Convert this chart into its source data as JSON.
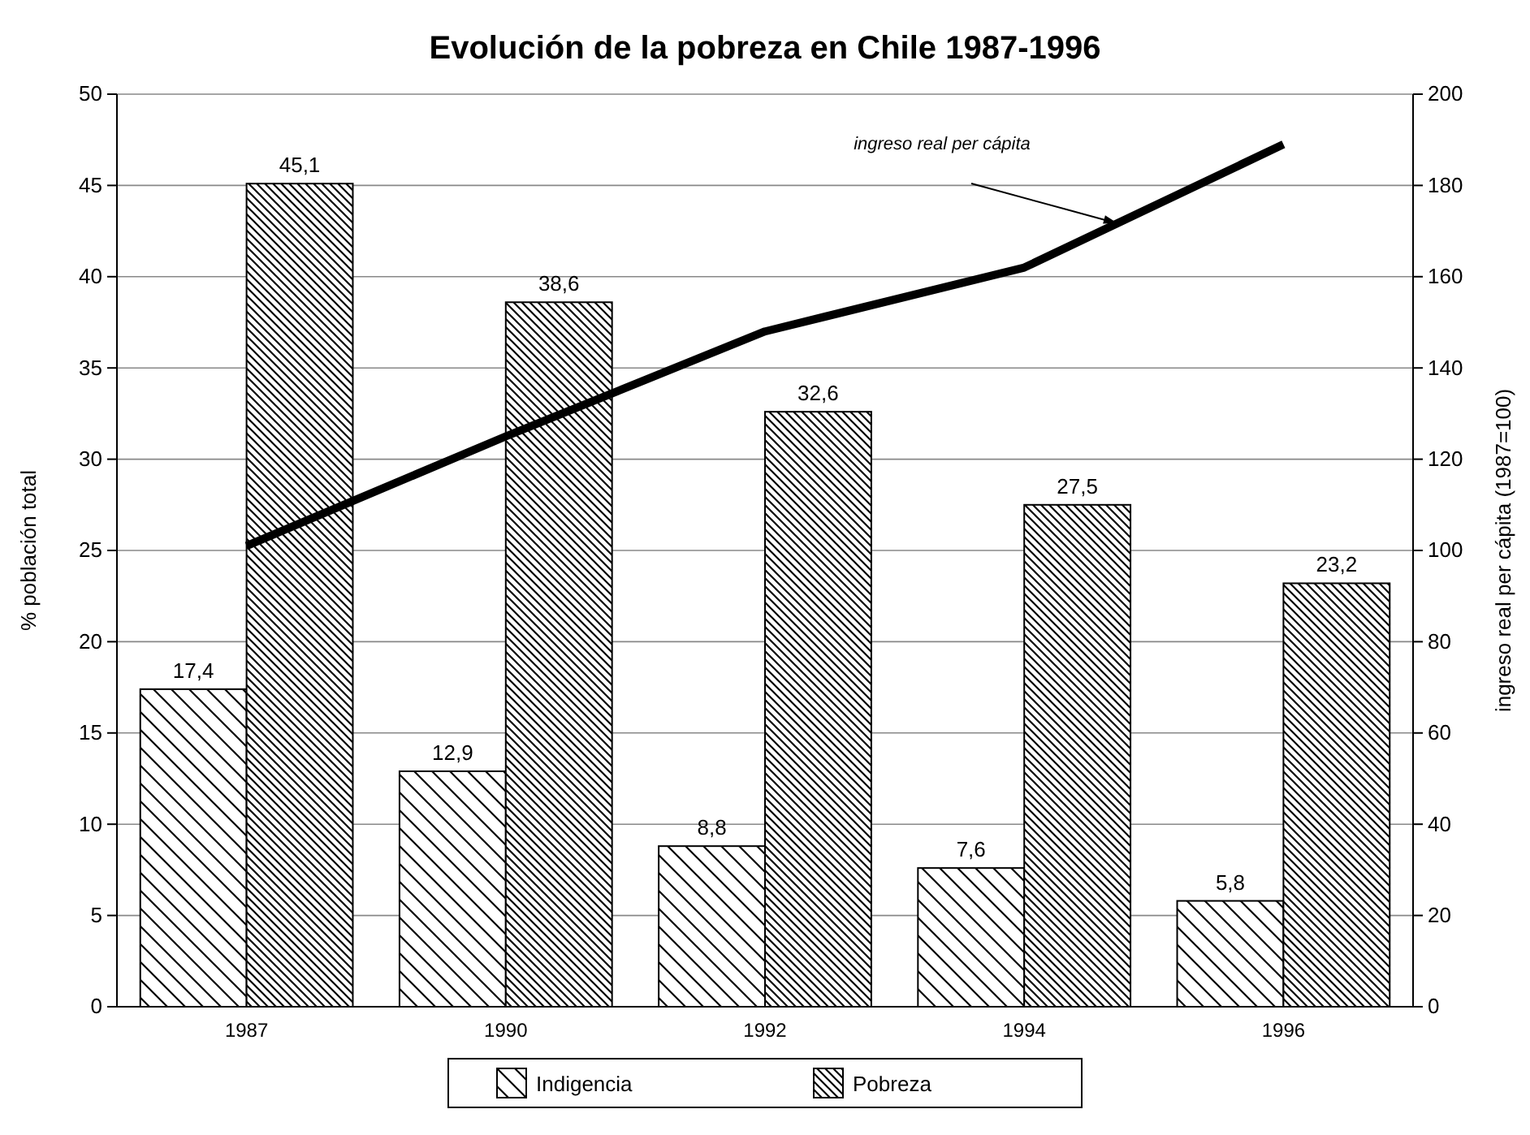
{
  "chart_data": {
    "type": "bar",
    "title": "Evolución de la pobreza en Chile 1987-1996",
    "ylabel": "% población total",
    "y2label": "ingreso real per cápita (1987=100)",
    "categories": [
      "1987",
      "1990",
      "1992",
      "1994",
      "1996"
    ],
    "series": [
      {
        "name": "Indigencia",
        "color": "#000000",
        "values": [
          17.4,
          12.9,
          8.8,
          7.6,
          5.8
        ],
        "value_labels": [
          "17,4",
          "12,9",
          "8,8",
          "7,6",
          "5,8"
        ]
      },
      {
        "name": "Pobreza",
        "color": "#000000",
        "values": [
          45.1,
          38.6,
          32.6,
          27.5,
          23.2
        ],
        "value_labels": [
          "45,1",
          "38,6",
          "32,6",
          "27,5",
          "23,2"
        ]
      },
      {
        "type": "line",
        "axis": "y2",
        "color": "#000000",
        "values": [
          101,
          125,
          148,
          162,
          189
        ]
      }
    ],
    "ylim": [
      0,
      50
    ],
    "yticks": [
      0,
      5,
      10,
      15,
      20,
      25,
      30,
      35,
      40,
      45,
      50
    ],
    "y2lim": [
      0,
      200
    ],
    "y2ticks": [
      0,
      20,
      40,
      60,
      80,
      100,
      120,
      140,
      160,
      180,
      200
    ],
    "annotations": [
      "ingreso real per cápita"
    ],
    "grid": "y",
    "legend": "bottom",
    "marker": "none",
    "line_style": "solid"
  }
}
